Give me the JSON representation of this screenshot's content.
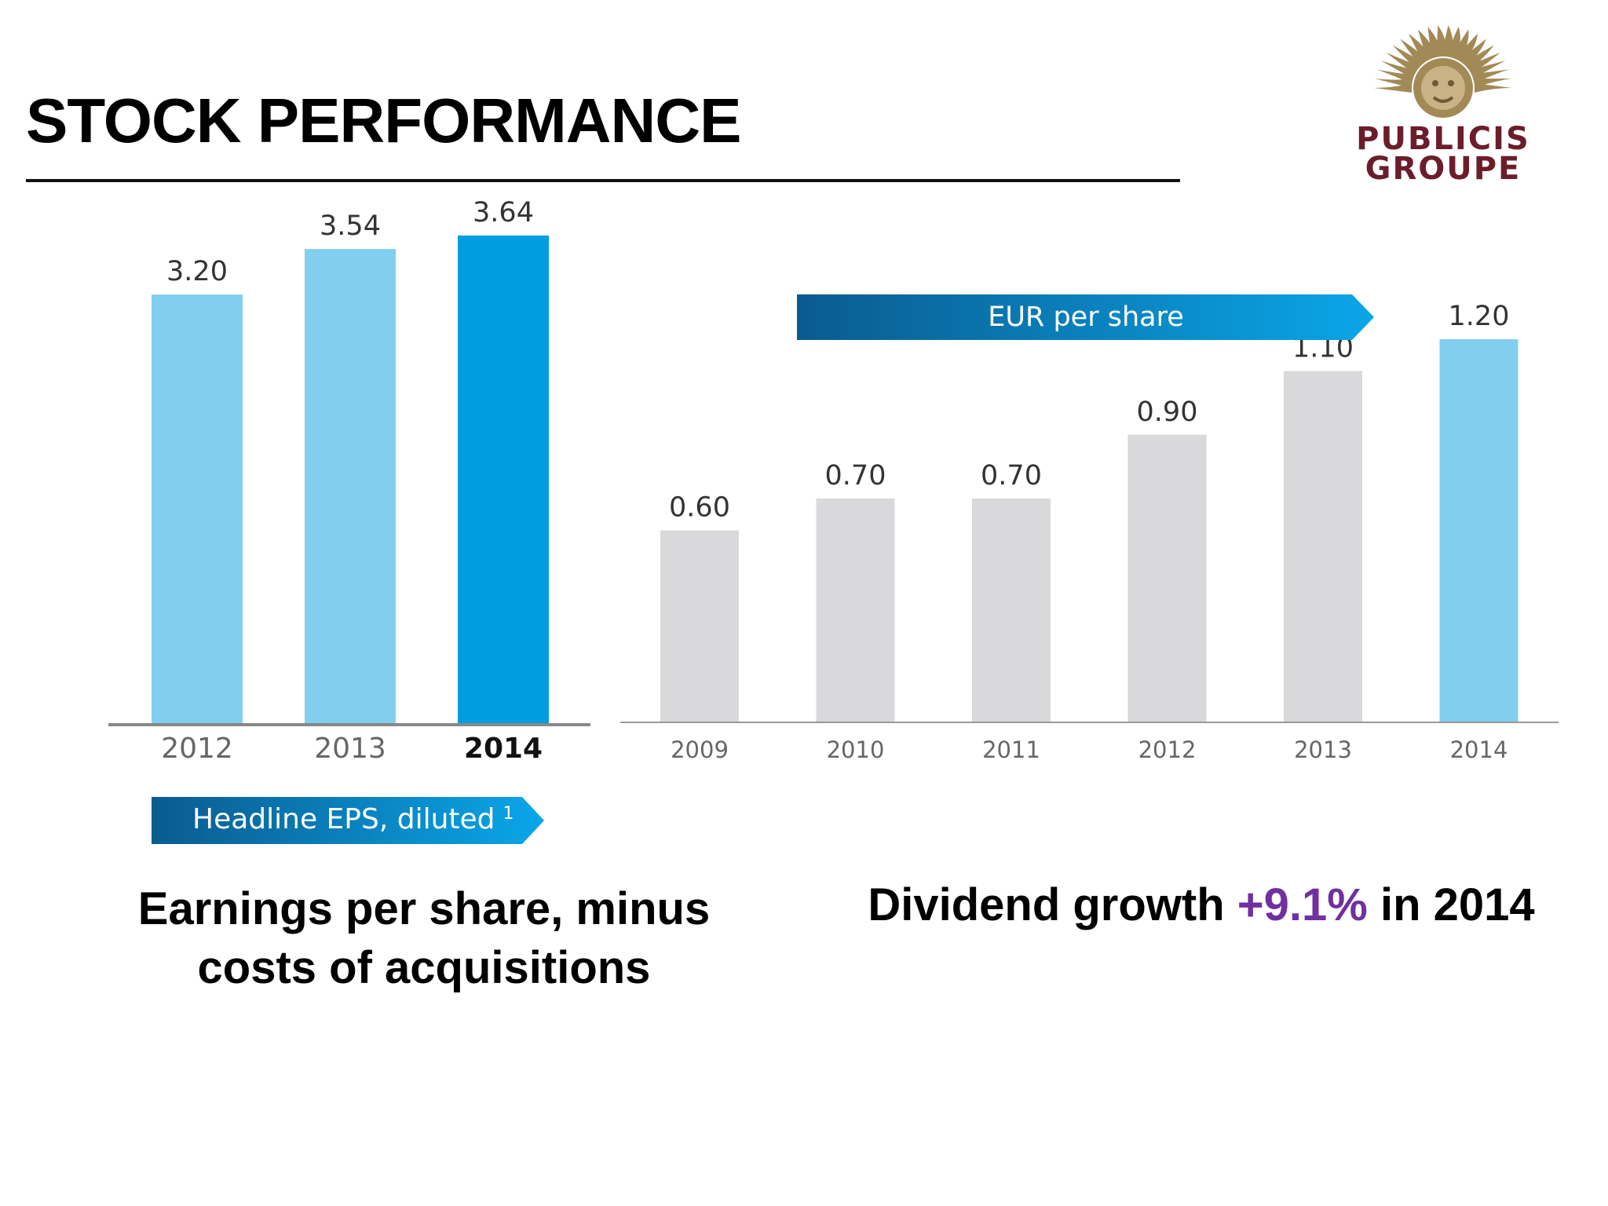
{
  "slide": {
    "title": "STOCK PERFORMANCE",
    "logo": {
      "line1": "PUBLICIS",
      "line2": "GROUPE",
      "sun_icon": "lion-sun-icon",
      "color_gold": "#a28a57",
      "color_maroon": "#6b1e2a"
    }
  },
  "chart_data": [
    {
      "type": "bar",
      "title": "Headline EPS, diluted",
      "title_superscript": "1",
      "categories": [
        "2012",
        "2013",
        "2014"
      ],
      "values": [
        3.2,
        3.54,
        3.64
      ],
      "value_labels": [
        "3.20",
        "3.54",
        "3.64"
      ],
      "highlight_category": "2014",
      "colors": {
        "bar": "#82ceef",
        "highlight": "#009ee0"
      },
      "ylim": [
        0,
        3.8
      ],
      "grid": false,
      "legend": "none"
    },
    {
      "type": "bar",
      "title": "EUR per share",
      "categories": [
        "2009",
        "2010",
        "2011",
        "2012",
        "2013",
        "2014"
      ],
      "values": [
        0.6,
        0.7,
        0.7,
        0.9,
        1.1,
        1.2
      ],
      "value_labels": [
        "0.60",
        "0.70",
        "0.70",
        "0.90",
        "1.10",
        "1.20"
      ],
      "highlight_category": "2014",
      "colors": {
        "bar": "#d9d8da",
        "highlight": "#82ceef"
      },
      "ylim": [
        0,
        1.4
      ],
      "grid": false,
      "legend": "none"
    }
  ],
  "captions": {
    "left": "Earnings per share, minus costs of acquisitions",
    "right_prefix": "Dividend growth ",
    "right_highlight": "+9.1%",
    "right_suffix": " in 2014"
  },
  "colors": {
    "accent": "#7030a0",
    "arrow_dark": "#0a5b8f",
    "arrow_light": "#0aa6e8"
  }
}
